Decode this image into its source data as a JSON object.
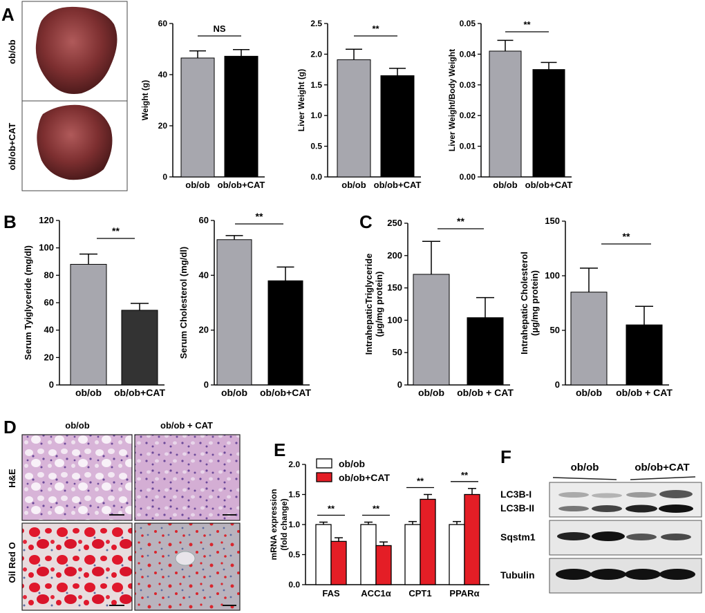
{
  "figure": {
    "panel_labels": [
      "A",
      "B",
      "C",
      "D",
      "E",
      "F"
    ],
    "photo_labels": [
      "ob/ob",
      "ob/ob+CAT"
    ],
    "histology": {
      "column_labels": [
        "ob/ob",
        "ob/ob + CAT"
      ],
      "row_labels": [
        "H&E",
        "Oil Red O"
      ]
    },
    "blot": {
      "group_labels": [
        "ob/ob",
        "ob/ob+CAT"
      ],
      "row_labels": [
        "LC3B-I",
        "LC3B-II",
        "Sqstm1",
        "Tubulin"
      ]
    },
    "colors": {
      "gray_bar": "#a7a7ae",
      "dark_bar": "#333333",
      "black_bar": "#000000",
      "red_bar": "#e41e26",
      "he_stain": "#d9b3d6",
      "oil_red": "#e0182c",
      "liver": "#7a2e2e"
    }
  },
  "chart_data": [
    {
      "id": "A1",
      "type": "bar",
      "categories": [
        "ob/ob",
        "ob/ob+CAT"
      ],
      "values": [
        46.5,
        47.2
      ],
      "errors": [
        2.8,
        2.6
      ],
      "ylabel": "Weight (g)",
      "ylim": [
        0,
        60
      ],
      "ticks": [
        "0",
        "20",
        "40",
        "60"
      ],
      "significance": "NS"
    },
    {
      "id": "A2",
      "type": "bar",
      "categories": [
        "ob/ob",
        "ob/ob+CAT"
      ],
      "values": [
        1.91,
        1.65
      ],
      "errors": [
        0.17,
        0.12
      ],
      "ylabel": "Liver Weight (g)",
      "ylim": [
        0,
        2.5
      ],
      "ticks": [
        "0.0",
        "0.5",
        "1.0",
        "1.5",
        "2.0",
        "2.5"
      ],
      "significance": "**"
    },
    {
      "id": "A3",
      "type": "bar",
      "categories": [
        "ob/ob",
        "ob/ob+CAT"
      ],
      "values": [
        0.041,
        0.035
      ],
      "errors": [
        0.0035,
        0.0023
      ],
      "ylabel": "Liver Weight/Body Weight",
      "ylim": [
        0,
        0.05
      ],
      "ticks": [
        "0.00",
        "0.01",
        "0.02",
        "0.03",
        "0.04",
        "0.05"
      ],
      "significance": "**"
    },
    {
      "id": "B1",
      "type": "bar",
      "categories": [
        "ob/ob",
        "ob/ob+CAT"
      ],
      "values": [
        88,
        54.5
      ],
      "errors": [
        7.5,
        5
      ],
      "ylabel": "Serum Tyiglyceride (mg/dl)",
      "ylim": [
        0,
        120
      ],
      "ticks": [
        "0",
        "20",
        "40",
        "60",
        "80",
        "100",
        "120"
      ],
      "significance": "**"
    },
    {
      "id": "B2",
      "type": "bar",
      "categories": [
        "ob/ob",
        "ob/ob+CAT"
      ],
      "values": [
        53,
        38
      ],
      "errors": [
        1.5,
        5
      ],
      "ylabel": "Serum Cholesterol (mg/dl)",
      "ylim": [
        0,
        60
      ],
      "ticks": [
        "0",
        "20",
        "40",
        "60"
      ],
      "significance": "**"
    },
    {
      "id": "C1",
      "type": "bar",
      "categories": [
        "ob/ob",
        "ob/ob + CAT"
      ],
      "values": [
        171,
        104
      ],
      "errors": [
        51,
        31
      ],
      "ylabel": [
        "IntrahepaticTriglyceride",
        "(µg/mg protein)"
      ],
      "ylim": [
        0,
        250
      ],
      "ticks": [
        "0",
        "50",
        "100",
        "150",
        "200",
        "250"
      ],
      "significance": "**"
    },
    {
      "id": "C2",
      "type": "bar",
      "categories": [
        "ob/ob",
        "ob/ob + CAT"
      ],
      "values": [
        85,
        55
      ],
      "errors": [
        22,
        17
      ],
      "ylabel": [
        "Intrahepatic Cholesterol",
        "(µg/mg protein)"
      ],
      "ylim": [
        0,
        150
      ],
      "ticks": [
        "0",
        "50",
        "100",
        "150"
      ],
      "significance": "**"
    },
    {
      "id": "E",
      "type": "bar",
      "categories": [
        "FAS",
        "ACC1α",
        "CPT1",
        "PPARα"
      ],
      "series": [
        {
          "name": "ob/ob",
          "values": [
            1.0,
            1.0,
            1.0,
            1.0
          ],
          "errors": [
            0.04,
            0.04,
            0.05,
            0.05
          ]
        },
        {
          "name": "ob/ob+CAT",
          "values": [
            0.72,
            0.65,
            1.42,
            1.5
          ],
          "errors": [
            0.06,
            0.06,
            0.08,
            0.1
          ]
        }
      ],
      "ylabel": [
        "mRNA expression",
        "(fold change)"
      ],
      "ylim": [
        0,
        2.0
      ],
      "ticks": [
        "0.0",
        "0.5",
        "1.0",
        "1.5",
        "2.0"
      ],
      "significance": [
        "**",
        "**",
        "**",
        "**"
      ]
    }
  ]
}
